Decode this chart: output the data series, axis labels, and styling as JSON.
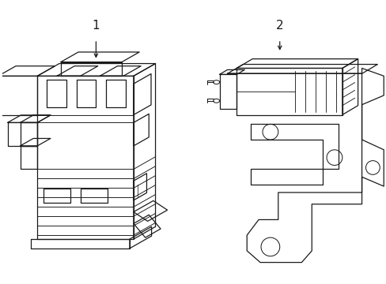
{
  "background_color": "#ffffff",
  "line_color": "#1a1a1a",
  "line_width": 0.9,
  "label1": "1",
  "label2": "2",
  "figsize": [
    4.89,
    3.6
  ],
  "dpi": 100
}
